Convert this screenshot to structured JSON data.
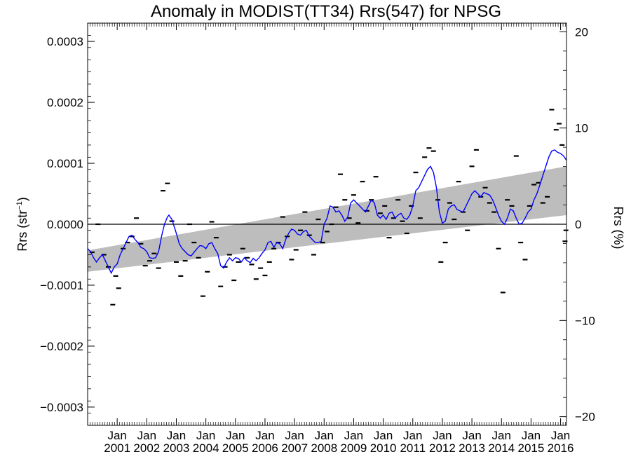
{
  "chart_data": {
    "type": "line",
    "title": "Anomaly in MODIST(TT34) Rrs(547) for NPSG",
    "ylabel_left": "Rrs (str",
    "ylabel_left_sup": "−1",
    "ylabel_left_close": ")",
    "ylabel_right": "Rrs (%)",
    "xlim": [
      2000.0,
      2016.2
    ],
    "ylim": [
      -0.00033,
      0.00033
    ],
    "ylim_right_percent": [
      -20.9,
      20.9
    ],
    "x_ticks": [
      {
        "x": 2001.0,
        "top": "Jan",
        "bottom": "2001"
      },
      {
        "x": 2002.0,
        "top": "Jan",
        "bottom": "2002"
      },
      {
        "x": 2003.0,
        "top": "Jan",
        "bottom": "2003"
      },
      {
        "x": 2004.0,
        "top": "Jan",
        "bottom": "2004"
      },
      {
        "x": 2005.0,
        "top": "Jan",
        "bottom": "2005"
      },
      {
        "x": 2006.0,
        "top": "Jan",
        "bottom": "2006"
      },
      {
        "x": 2007.0,
        "top": "Jan",
        "bottom": "2007"
      },
      {
        "x": 2008.0,
        "top": "Jan",
        "bottom": "2008"
      },
      {
        "x": 2009.0,
        "top": "Jan",
        "bottom": "2009"
      },
      {
        "x": 2010.0,
        "top": "Jan",
        "bottom": "2010"
      },
      {
        "x": 2011.0,
        "top": "Jan",
        "bottom": "2011"
      },
      {
        "x": 2012.0,
        "top": "Jan",
        "bottom": "2012"
      },
      {
        "x": 2013.0,
        "top": "Jan",
        "bottom": "2013"
      },
      {
        "x": 2014.0,
        "top": "Jan",
        "bottom": "2014"
      },
      {
        "x": 2015.0,
        "top": "Jan",
        "bottom": "2015"
      },
      {
        "x": 2016.0,
        "top": "Jan",
        "bottom": "2016"
      }
    ],
    "y_ticks_left": [
      {
        "value": 0.0003,
        "label": "0.0003"
      },
      {
        "value": 0.0002,
        "label": "0.0002"
      },
      {
        "value": 0.0001,
        "label": "0.0001"
      },
      {
        "value": 0.0,
        "label": "0.0000"
      },
      {
        "value": -0.0001,
        "label": "−0.0001"
      },
      {
        "value": -0.0002,
        "label": "−0.0002"
      },
      {
        "value": -0.0003,
        "label": "−0.0003"
      }
    ],
    "y_ticks_right": [
      {
        "value": 20,
        "label": "20"
      },
      {
        "value": 10,
        "label": "10"
      },
      {
        "value": 0,
        "label": "0"
      },
      {
        "value": -10,
        "label": "−10"
      },
      {
        "value": -20,
        "label": "−20"
      }
    ],
    "zero_line": true,
    "trend_band": {
      "x": [
        2000.0,
        2016.2
      ],
      "lower": [
        -7.8e-05,
        1.5e-05
      ],
      "upper": [
        -4.3e-05,
        9.5e-05
      ]
    },
    "running_mean": {
      "color": "#0000ff",
      "points": [
        [
          2000.0,
          -4e-05
        ],
        [
          2000.1,
          -4.5e-05
        ],
        [
          2000.2,
          -5.5e-05
        ],
        [
          2000.3,
          -6.2e-05
        ],
        [
          2000.4,
          -5.5e-05
        ],
        [
          2000.5,
          -5e-05
        ],
        [
          2000.6,
          -6e-05
        ],
        [
          2000.7,
          -7e-05
        ],
        [
          2000.8,
          -8e-05
        ],
        [
          2000.9,
          -7e-05
        ],
        [
          2001.0,
          -6.5e-05
        ],
        [
          2001.1,
          -5e-05
        ],
        [
          2001.2,
          -4e-05
        ],
        [
          2001.3,
          -3e-05
        ],
        [
          2001.4,
          -2e-05
        ],
        [
          2001.5,
          -1.8e-05
        ],
        [
          2001.6,
          -2.5e-05
        ],
        [
          2001.7,
          -3e-05
        ],
        [
          2001.8,
          -3.8e-05
        ],
        [
          2001.9,
          -4e-05
        ],
        [
          2002.0,
          -4.5e-05
        ],
        [
          2002.1,
          -5.5e-05
        ],
        [
          2002.2,
          -5.6e-05
        ],
        [
          2002.3,
          -5.5e-05
        ],
        [
          2002.4,
          -4.5e-05
        ],
        [
          2002.5,
          -2e-05
        ],
        [
          2002.6,
          0.0
        ],
        [
          2002.7,
          1.2e-05
        ],
        [
          2002.75,
          1.5e-05
        ],
        [
          2002.85,
          8e-06
        ],
        [
          2003.0,
          -1.5e-05
        ],
        [
          2003.1,
          -3.2e-05
        ],
        [
          2003.2,
          -4e-05
        ],
        [
          2003.3,
          -4.5e-05
        ],
        [
          2003.4,
          -5e-05
        ],
        [
          2003.5,
          -5.2e-05
        ],
        [
          2003.6,
          -4.6e-05
        ],
        [
          2003.7,
          -4e-05
        ],
        [
          2003.8,
          -3.5e-05
        ],
        [
          2003.9,
          -3.6e-05
        ],
        [
          2004.0,
          -4e-05
        ],
        [
          2004.1,
          -3.2e-05
        ],
        [
          2004.2,
          -3e-05
        ],
        [
          2004.3,
          -4e-05
        ],
        [
          2004.4,
          -4.8e-05
        ],
        [
          2004.5,
          -6.8e-05
        ],
        [
          2004.6,
          -7.2e-05
        ],
        [
          2004.7,
          -6.2e-05
        ],
        [
          2004.8,
          -5.5e-05
        ],
        [
          2004.9,
          -6e-05
        ],
        [
          2005.0,
          -5.5e-05
        ],
        [
          2005.1,
          -5.6e-05
        ],
        [
          2005.2,
          -6.2e-05
        ],
        [
          2005.3,
          -5.5e-05
        ],
        [
          2005.4,
          -6e-05
        ],
        [
          2005.5,
          -6.3e-05
        ],
        [
          2005.6,
          -5.6e-05
        ],
        [
          2005.7,
          -6e-05
        ],
        [
          2005.8,
          -5.5e-05
        ],
        [
          2005.9,
          -4.8e-05
        ],
        [
          2006.0,
          -4.2e-05
        ],
        [
          2006.1,
          -3e-05
        ],
        [
          2006.2,
          -2.8e-05
        ],
        [
          2006.3,
          -3.8e-05
        ],
        [
          2006.4,
          -3e-05
        ],
        [
          2006.5,
          -3.2e-05
        ],
        [
          2006.6,
          -4e-05
        ],
        [
          2006.7,
          -2.5e-05
        ],
        [
          2006.8,
          -1.5e-05
        ],
        [
          2006.9,
          -8e-06
        ],
        [
          2007.0,
          -1e-05
        ],
        [
          2007.1,
          -1.6e-05
        ],
        [
          2007.2,
          -1.8e-05
        ],
        [
          2007.3,
          -1.2e-05
        ],
        [
          2007.4,
          -1e-05
        ],
        [
          2007.5,
          -2e-05
        ],
        [
          2007.6,
          -2.5e-05
        ],
        [
          2007.7,
          -3e-05
        ],
        [
          2007.8,
          -3e-05
        ],
        [
          2007.9,
          -2.8e-05
        ],
        [
          2008.0,
          0.0
        ],
        [
          2008.1,
          1e-05
        ],
        [
          2008.2,
          3e-05
        ],
        [
          2008.3,
          2.8e-05
        ],
        [
          2008.4,
          2e-05
        ],
        [
          2008.5,
          2.2e-05
        ],
        [
          2008.6,
          1.5e-05
        ],
        [
          2008.7,
          5e-06
        ],
        [
          2008.8,
          1.2e-05
        ],
        [
          2008.9,
          3.5e-05
        ],
        [
          2009.0,
          4e-05
        ],
        [
          2009.1,
          3.5e-05
        ],
        [
          2009.2,
          3e-05
        ],
        [
          2009.3,
          2.5e-05
        ],
        [
          2009.4,
          2e-05
        ],
        [
          2009.5,
          3e-05
        ],
        [
          2009.6,
          4e-05
        ],
        [
          2009.7,
          3.5e-05
        ],
        [
          2009.8,
          1.5e-05
        ],
        [
          2009.9,
          1e-05
        ],
        [
          2010.0,
          1.5e-05
        ],
        [
          2010.1,
          8e-06
        ],
        [
          2010.2,
          1.8e-05
        ],
        [
          2010.3,
          2e-05
        ],
        [
          2010.4,
          1e-05
        ],
        [
          2010.5,
          1.5e-05
        ],
        [
          2010.6,
          1.8e-05
        ],
        [
          2010.7,
          1e-05
        ],
        [
          2010.8,
          8e-06
        ],
        [
          2010.9,
          1.5e-05
        ],
        [
          2011.0,
          3e-05
        ],
        [
          2011.1,
          5.5e-05
        ],
        [
          2011.2,
          6e-05
        ],
        [
          2011.3,
          7e-05
        ],
        [
          2011.4,
          8e-05
        ],
        [
          2011.5,
          9e-05
        ],
        [
          2011.6,
          9.5e-05
        ],
        [
          2011.7,
          8.5e-05
        ],
        [
          2011.8,
          6e-05
        ],
        [
          2011.9,
          2e-05
        ],
        [
          2012.0,
          2e-06
        ],
        [
          2012.1,
          5e-06
        ],
        [
          2012.2,
          2.5e-05
        ],
        [
          2012.3,
          3e-05
        ],
        [
          2012.4,
          3.2e-05
        ],
        [
          2012.5,
          2.4e-05
        ],
        [
          2012.6,
          2.2e-05
        ],
        [
          2012.7,
          2e-05
        ],
        [
          2012.8,
          3e-05
        ],
        [
          2012.9,
          4e-05
        ],
        [
          2013.0,
          5e-05
        ],
        [
          2013.1,
          5.5e-05
        ],
        [
          2013.2,
          5e-05
        ],
        [
          2013.3,
          4.5e-05
        ],
        [
          2013.4,
          5.2e-05
        ],
        [
          2013.5,
          5e-05
        ],
        [
          2013.6,
          4.8e-05
        ],
        [
          2013.7,
          4e-05
        ],
        [
          2013.8,
          2.8e-05
        ],
        [
          2013.9,
          1.5e-05
        ],
        [
          2014.0,
          5e-06
        ],
        [
          2014.1,
          0.0
        ],
        [
          2014.2,
          1e-05
        ],
        [
          2014.3,
          2.5e-05
        ],
        [
          2014.4,
          2.2e-05
        ],
        [
          2014.5,
          1e-05
        ],
        [
          2014.6,
          0.0
        ],
        [
          2014.7,
          2e-06
        ],
        [
          2014.8,
          1e-05
        ],
        [
          2014.9,
          2e-05
        ],
        [
          2015.0,
          2.5e-05
        ],
        [
          2015.1,
          4e-05
        ],
        [
          2015.2,
          5e-05
        ],
        [
          2015.3,
          6.5e-05
        ],
        [
          2015.4,
          8e-05
        ],
        [
          2015.5,
          9.5e-05
        ],
        [
          2015.6,
          0.00011
        ],
        [
          2015.7,
          0.00012
        ],
        [
          2015.8,
          0.000122
        ],
        [
          2015.9,
          0.000118
        ],
        [
          2016.0,
          0.000116
        ],
        [
          2016.1,
          0.000112
        ],
        [
          2016.2,
          0.000105
        ]
      ]
    },
    "monthly_points": [
      [
        2000.15,
        -4.6e-05
      ],
      [
        2000.35,
        -0.0
      ],
      [
        2000.55,
        -5e-05
      ],
      [
        2000.7,
        -7e-05
      ],
      [
        2000.85,
        -0.000132
      ],
      [
        2000.95,
        -8.5e-05
      ],
      [
        2001.05,
        -0.000105
      ],
      [
        2001.2,
        -4e-05
      ],
      [
        2001.35,
        -3e-05
      ],
      [
        2001.5,
        -2e-05
      ],
      [
        2001.65,
        1e-05
      ],
      [
        2001.8,
        -3.2e-05
      ],
      [
        2001.95,
        -6.8e-05
      ],
      [
        2002.1,
        -6e-05
      ],
      [
        2002.25,
        -4.8e-05
      ],
      [
        2002.4,
        -7.2e-05
      ],
      [
        2002.55,
        5.5e-05
      ],
      [
        2002.7,
        6.7e-05
      ],
      [
        2002.85,
        5e-06
      ],
      [
        2003.0,
        -6.2e-05
      ],
      [
        2003.15,
        -8.5e-05
      ],
      [
        2003.3,
        -6e-05
      ],
      [
        2003.45,
        -0.0
      ],
      [
        2003.6,
        -3e-05
      ],
      [
        2003.75,
        -5.5e-05
      ],
      [
        2003.9,
        -0.000118
      ],
      [
        2004.05,
        -7.8e-05
      ],
      [
        2004.2,
        4e-06
      ],
      [
        2004.35,
        -2.2e-05
      ],
      [
        2004.5,
        -0.000102
      ],
      [
        2004.65,
        -7e-05
      ],
      [
        2004.8,
        -5e-05
      ],
      [
        2004.95,
        -9.2e-05
      ],
      [
        2005.1,
        -6.2e-05
      ],
      [
        2005.25,
        -4e-05
      ],
      [
        2005.4,
        -5.5e-05
      ],
      [
        2005.55,
        -6.6e-05
      ],
      [
        2005.7,
        -9e-05
      ],
      [
        2005.85,
        -7.2e-05
      ],
      [
        2006.0,
        -8.4e-05
      ],
      [
        2006.15,
        -6.2e-05
      ],
      [
        2006.3,
        -4e-05
      ],
      [
        2006.45,
        -3e-05
      ],
      [
        2006.6,
        1.2e-05
      ],
      [
        2006.75,
        -2e-05
      ],
      [
        2006.9,
        -5.8e-05
      ],
      [
        2007.05,
        -4.2e-05
      ],
      [
        2007.2,
        -1e-05
      ],
      [
        2007.35,
        2e-05
      ],
      [
        2007.5,
        -1.8e-05
      ],
      [
        2007.65,
        -5e-05
      ],
      [
        2007.8,
        8e-06
      ],
      [
        2007.95,
        -3e-05
      ],
      [
        2008.1,
        -1.2e-05
      ],
      [
        2008.25,
        -0.0
      ],
      [
        2008.4,
        2.8e-05
      ],
      [
        2008.55,
        8.2e-05
      ],
      [
        2008.7,
        4e-05
      ],
      [
        2008.85,
        1e-05
      ],
      [
        2009.0,
        4.8e-05
      ],
      [
        2009.15,
        2e-06
      ],
      [
        2009.3,
        7e-05
      ],
      [
        2009.45,
        2.2e-05
      ],
      [
        2009.6,
        4e-05
      ],
      [
        2009.75,
        7.8e-05
      ],
      [
        2009.9,
        1.8e-05
      ],
      [
        2010.05,
        3e-05
      ],
      [
        2010.2,
        -2.2e-05
      ],
      [
        2010.35,
        1e-05
      ],
      [
        2010.5,
        4e-05
      ],
      [
        2010.65,
        5e-06
      ],
      [
        2010.8,
        -1.5e-05
      ],
      [
        2010.95,
        3e-05
      ],
      [
        2011.1,
        8.5e-05
      ],
      [
        2011.25,
        1e-05
      ],
      [
        2011.4,
        0.00011
      ],
      [
        2011.55,
        0.000125
      ],
      [
        2011.7,
        0.00012
      ],
      [
        2011.85,
        4e-05
      ],
      [
        2011.95,
        -6.2e-05
      ],
      [
        2012.1,
        -3e-05
      ],
      [
        2012.25,
        3.5e-05
      ],
      [
        2012.4,
        8e-06
      ],
      [
        2012.55,
        7e-05
      ],
      [
        2012.7,
        2e-05
      ],
      [
        2012.85,
        -1e-05
      ],
      [
        2013.0,
        9.5e-05
      ],
      [
        2013.15,
        0.000122
      ],
      [
        2013.3,
        4.5e-05
      ],
      [
        2013.45,
        6e-05
      ],
      [
        2013.6,
        3.5e-05
      ],
      [
        2013.75,
        2e-05
      ],
      [
        2013.9,
        -4e-05
      ],
      [
        2014.05,
        -0.000112
      ],
      [
        2014.2,
        4e-05
      ],
      [
        2014.35,
        3e-05
      ],
      [
        2014.5,
        0.000112
      ],
      [
        2014.65,
        -3e-05
      ],
      [
        2014.8,
        -5.8e-05
      ],
      [
        2014.95,
        3e-05
      ],
      [
        2015.1,
        6.5e-05
      ],
      [
        2015.25,
        6.8e-05
      ],
      [
        2015.4,
        3.5e-05
      ],
      [
        2015.55,
        4.5e-05
      ],
      [
        2015.7,
        0.000188
      ],
      [
        2015.85,
        0.000155
      ],
      [
        2015.95,
        0.000165
      ],
      [
        2016.05,
        0.00013
      ],
      [
        2016.15,
        -2.8e-05
      ],
      [
        2016.18,
        -1e-05
      ]
    ]
  }
}
